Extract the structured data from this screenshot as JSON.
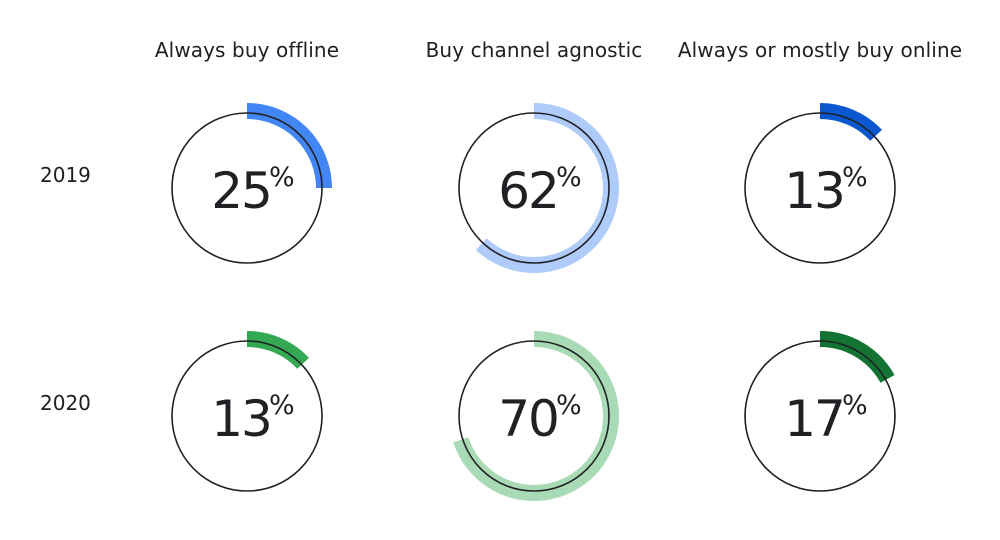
{
  "chart_data": {
    "type": "pie",
    "columns": [
      "Always buy offline",
      "Buy channel agnostic",
      "Always or mostly buy online"
    ],
    "rows": [
      "2019",
      "2020"
    ],
    "cells": [
      [
        {
          "value": 25,
          "label": "25",
          "color": "#4285F4"
        },
        {
          "value": 62,
          "label": "62",
          "color": "#AECBFA"
        },
        {
          "value": 13,
          "label": "13",
          "color": "#0B57D0"
        }
      ],
      [
        {
          "value": 13,
          "label": "13",
          "color": "#34A853"
        },
        {
          "value": 70,
          "label": "70",
          "color": "#A8DAB5"
        },
        {
          "value": 17,
          "label": "17",
          "color": "#137333"
        }
      ]
    ],
    "percent_sign": "%"
  }
}
